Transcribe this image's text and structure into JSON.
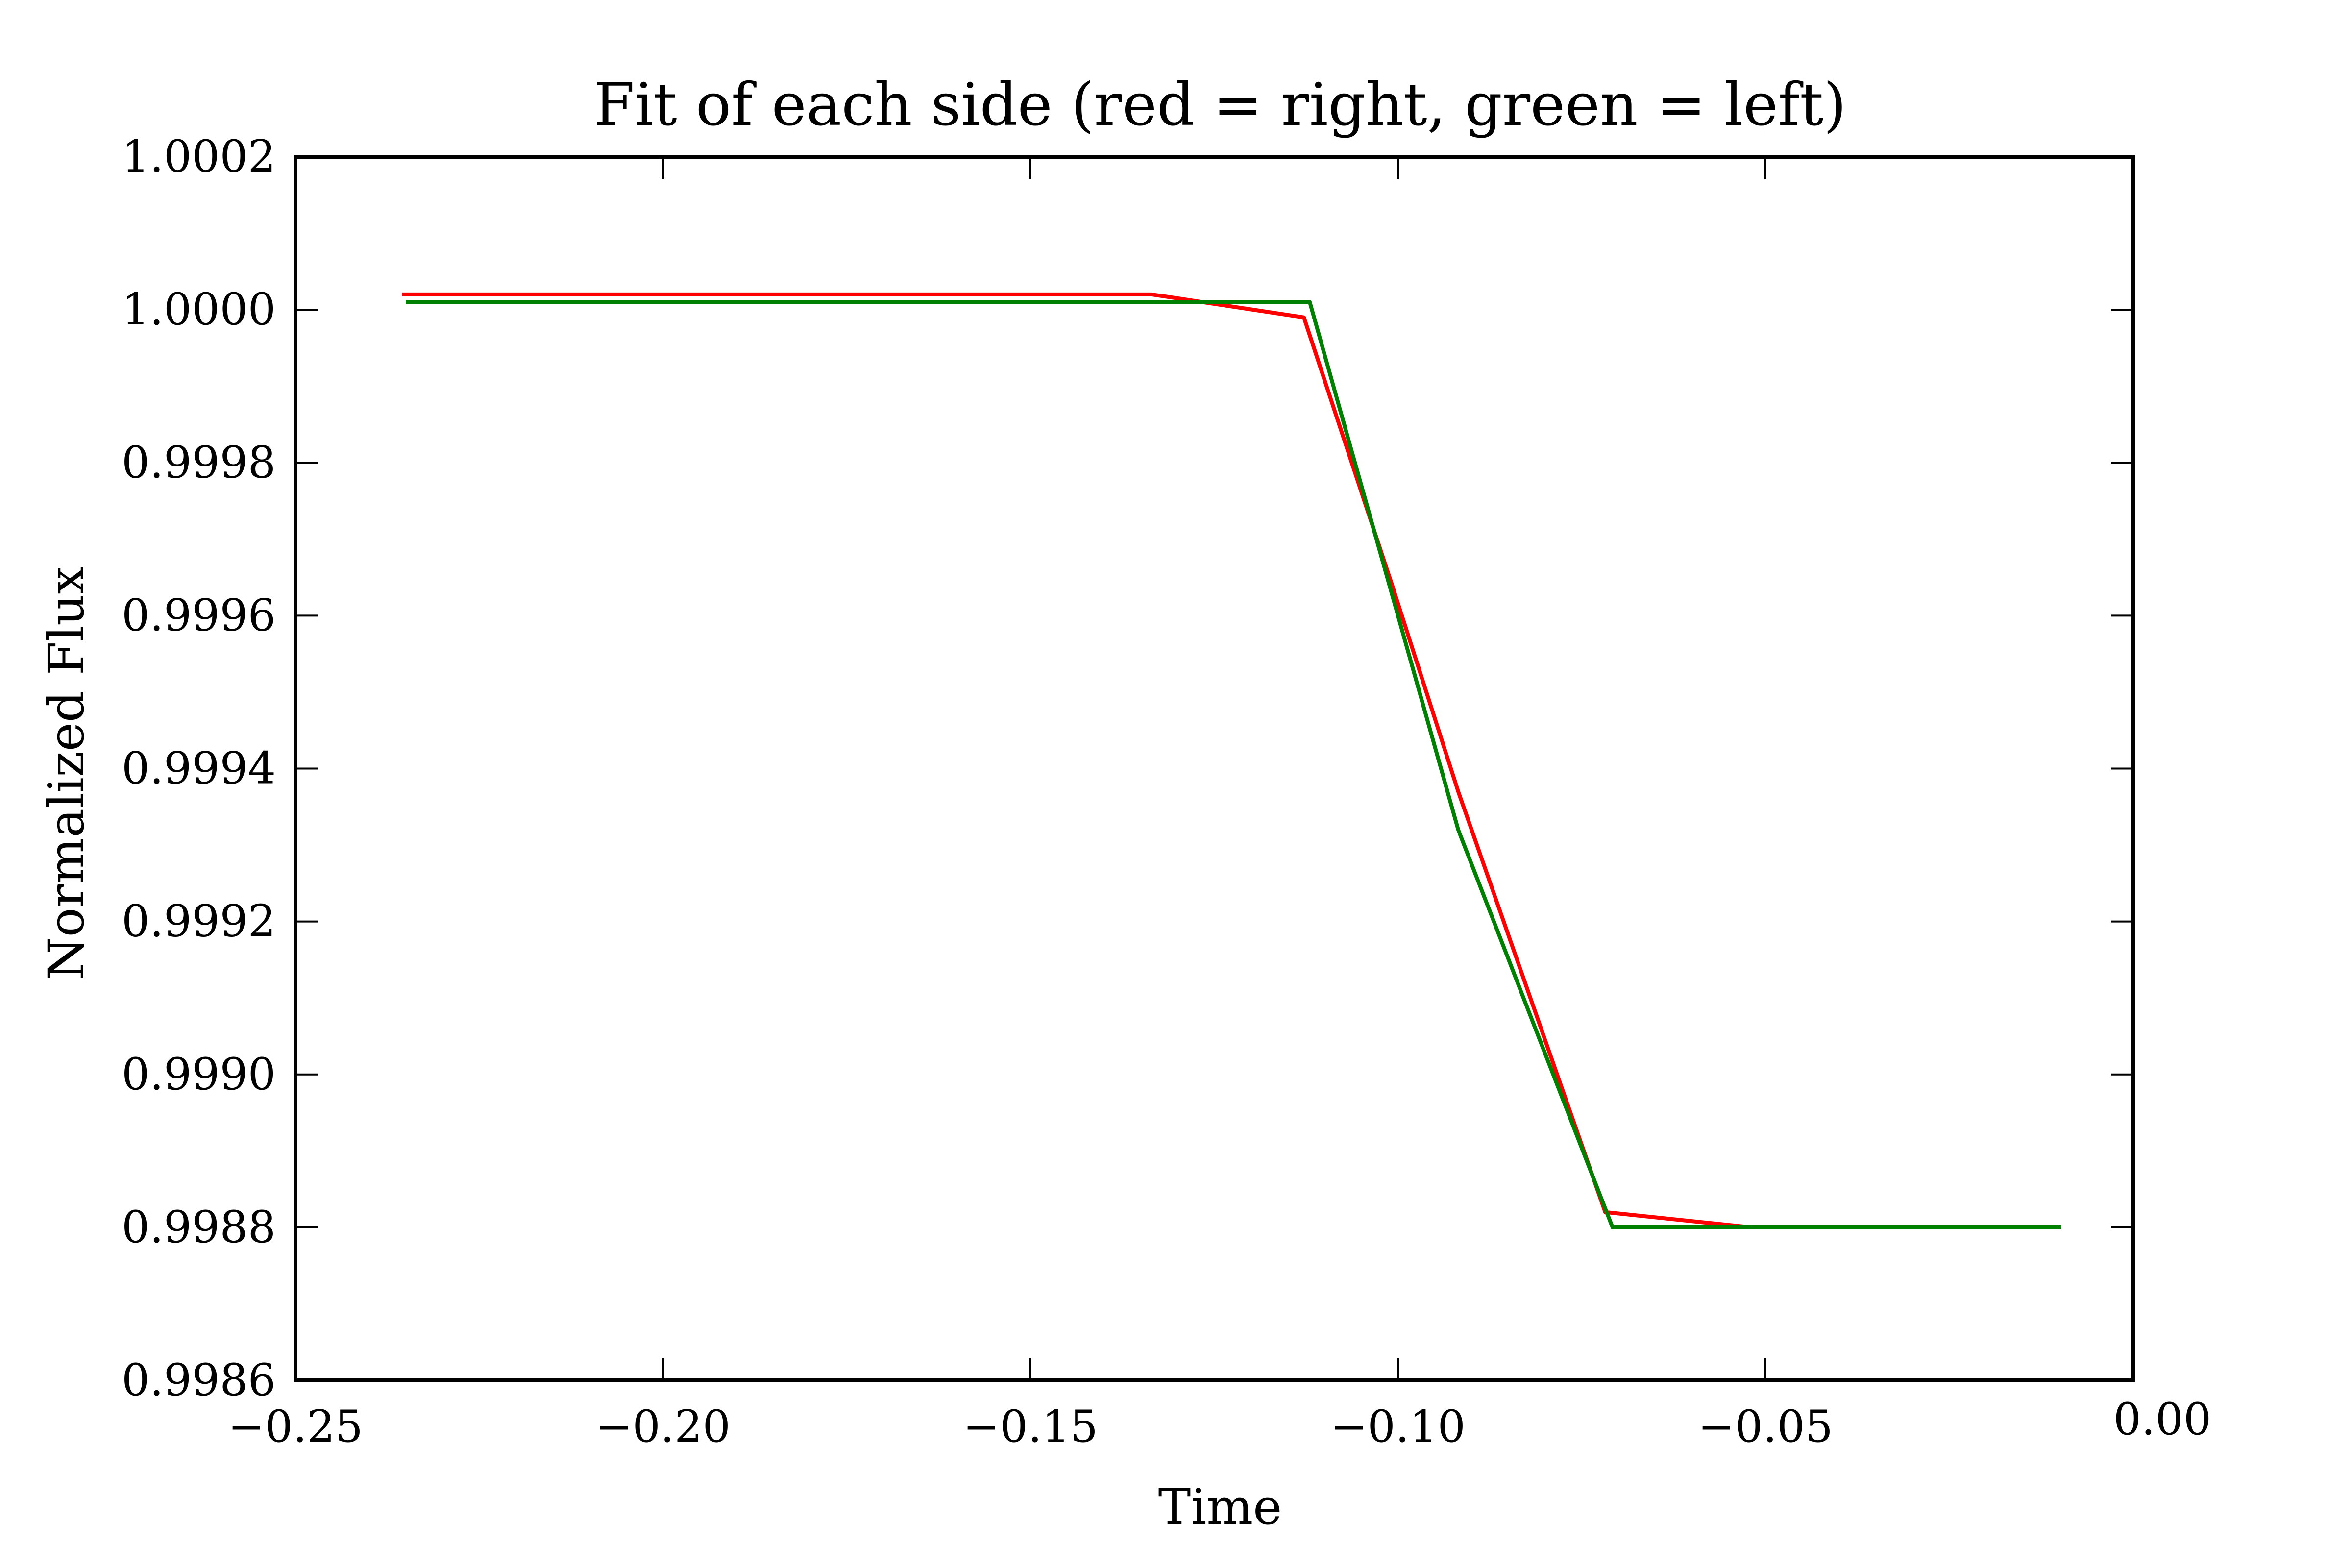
{
  "chart_data": {
    "type": "line",
    "title": "Fit of each side (red = right, green = left)",
    "xlabel": "Time",
    "ylabel": "Normalized Flux",
    "xlim": [
      -0.25,
      0.0
    ],
    "ylim": [
      0.9986,
      1.0002
    ],
    "grid": false,
    "x_ticks": [
      -0.25,
      -0.2,
      -0.15,
      -0.1,
      -0.05,
      0.0
    ],
    "x_tick_labels": [
      "−0.25",
      "−0.20",
      "−0.15",
      "−0.10",
      "−0.05",
      "0.00"
    ],
    "y_ticks": [
      0.9986,
      0.9988,
      0.999,
      0.9992,
      0.9994,
      0.9996,
      0.9998,
      1.0,
      1.0002
    ],
    "y_tick_labels": [
      "0.9986",
      "0.9988",
      "0.9990",
      "0.9992",
      "0.9994",
      "0.9996",
      "0.9998",
      "1.0000",
      "1.0002"
    ],
    "series": [
      {
        "color": "#ff0000",
        "x": [
          -0.2355,
          -0.1335,
          -0.1128,
          -0.1008,
          -0.0918,
          -0.0718,
          -0.0518,
          -0.0098
        ],
        "y": [
          1.00002,
          1.00002,
          0.99999,
          0.99964,
          0.99937,
          0.99882,
          0.9988,
          0.9988
        ]
      },
      {
        "color": "#008000",
        "x": [
          -0.235,
          -0.112,
          -0.0918,
          -0.0708,
          -0.0098
        ],
        "y": [
          1.00001,
          1.00001,
          0.99932,
          0.9988,
          0.9988
        ]
      }
    ]
  }
}
